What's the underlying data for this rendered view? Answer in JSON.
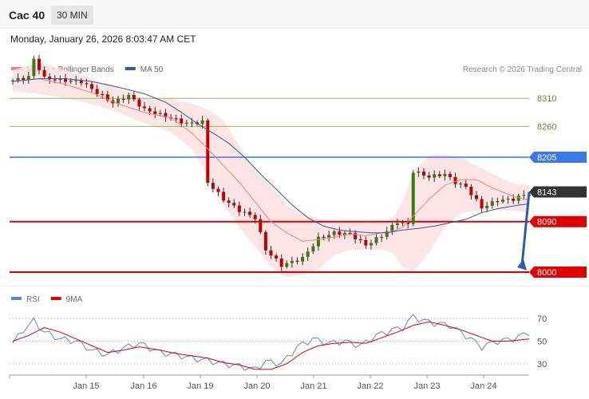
{
  "header": {
    "symbol": "Cac 40",
    "interval": "30 MIN",
    "datetime": "Monday, January 26, 2026 8:03:47 AM CET"
  },
  "colors": {
    "ma20": "#f08080",
    "band": "#fde0e0",
    "ma50": "#335a9a",
    "rsi": "#5b85d9",
    "rsi_ma": "#e00000",
    "candle_up": "#3a7a1a",
    "candle_down": "#c00000",
    "resistance_green": "#8dbf52",
    "pivot_blue": "#3a78e6",
    "support_red": "#e00000",
    "last_price": "#333333",
    "arrow": "#2a5ca8"
  },
  "chart_data": [
    {
      "type": "candlestick",
      "legend": [
        {
          "label": "MA 20 + Bollinger Bands",
          "color": "#f08080"
        },
        {
          "label": "MA 50",
          "color": "#335a9a"
        }
      ],
      "credit": "Research © 2026 Trading Central",
      "ylim": [
        7980,
        8400
      ],
      "levels": [
        {
          "label": "8310",
          "value": 8310,
          "kind": "resistance"
        },
        {
          "label": "8260",
          "value": 8260,
          "kind": "resistance"
        },
        {
          "label": "8205",
          "value": 8205,
          "kind": "pivot"
        },
        {
          "label": "8143",
          "value": 8143,
          "kind": "last"
        },
        {
          "label": "8090",
          "value": 8090,
          "kind": "support"
        },
        {
          "label": "8000",
          "value": 8000,
          "kind": "support"
        }
      ],
      "close_anchors": [
        [
          0,
          8342
        ],
        [
          3,
          8348
        ],
        [
          4,
          8380
        ],
        [
          6,
          8346
        ],
        [
          10,
          8342
        ],
        [
          13,
          8340
        ],
        [
          16,
          8320
        ],
        [
          19,
          8302
        ],
        [
          22,
          8315
        ],
        [
          25,
          8290
        ],
        [
          29,
          8278
        ],
        [
          33,
          8265
        ],
        [
          36,
          8268
        ],
        [
          37,
          8160
        ],
        [
          40,
          8130
        ],
        [
          43,
          8110
        ],
        [
          46,
          8097
        ],
        [
          48,
          8040
        ],
        [
          51,
          8012
        ],
        [
          55,
          8025
        ],
        [
          58,
          8060
        ],
        [
          61,
          8070
        ],
        [
          64,
          8068
        ],
        [
          67,
          8048
        ],
        [
          70,
          8065
        ],
        [
          73,
          8090
        ],
        [
          75,
          8085
        ],
        [
          76,
          8180
        ],
        [
          79,
          8170
        ],
        [
          82,
          8175
        ],
        [
          84,
          8160
        ],
        [
          86,
          8152
        ],
        [
          89,
          8115
        ],
        [
          92,
          8128
        ],
        [
          95,
          8130
        ],
        [
          97,
          8138
        ],
        [
          98,
          8140
        ]
      ],
      "candle_count": 99,
      "ma20_anchors": [
        [
          0,
          8340
        ],
        [
          5,
          8345
        ],
        [
          10,
          8335
        ],
        [
          15,
          8320
        ],
        [
          20,
          8300
        ],
        [
          25,
          8285
        ],
        [
          30,
          8275
        ],
        [
          34,
          8248
        ],
        [
          37,
          8220
        ],
        [
          40,
          8190
        ],
        [
          43,
          8160
        ],
        [
          46,
          8125
        ],
        [
          49,
          8090
        ],
        [
          52,
          8070
        ],
        [
          55,
          8055
        ],
        [
          58,
          8058
        ],
        [
          61,
          8062
        ],
        [
          64,
          8068
        ],
        [
          67,
          8065
        ],
        [
          70,
          8070
        ],
        [
          72,
          8072
        ],
        [
          74,
          8080
        ],
        [
          76,
          8100
        ],
        [
          79,
          8130
        ],
        [
          82,
          8155
        ],
        [
          85,
          8165
        ],
        [
          88,
          8165
        ],
        [
          91,
          8150
        ],
        [
          95,
          8135
        ],
        [
          98,
          8128
        ]
      ],
      "band_upper_anchors": [
        [
          0,
          8360
        ],
        [
          5,
          8375
        ],
        [
          10,
          8360
        ],
        [
          15,
          8345
        ],
        [
          20,
          8330
        ],
        [
          25,
          8310
        ],
        [
          30,
          8310
        ],
        [
          34,
          8300
        ],
        [
          37,
          8290
        ],
        [
          40,
          8270
        ],
        [
          43,
          8225
        ],
        [
          46,
          8180
        ],
        [
          49,
          8155
        ],
        [
          52,
          8120
        ],
        [
          55,
          8105
        ],
        [
          58,
          8095
        ],
        [
          61,
          8090
        ],
        [
          64,
          8092
        ],
        [
          67,
          8088
        ],
        [
          70,
          8090
        ],
        [
          72,
          8095
        ],
        [
          74,
          8125
        ],
        [
          76,
          8180
        ],
        [
          79,
          8208
        ],
        [
          82,
          8210
        ],
        [
          85,
          8205
        ],
        [
          88,
          8190
        ],
        [
          91,
          8175
        ],
        [
          95,
          8158
        ],
        [
          98,
          8155
        ]
      ],
      "band_lower_anchors": [
        [
          0,
          8322
        ],
        [
          5,
          8318
        ],
        [
          10,
          8310
        ],
        [
          15,
          8300
        ],
        [
          20,
          8285
        ],
        [
          25,
          8265
        ],
        [
          30,
          8250
        ],
        [
          34,
          8220
        ],
        [
          37,
          8170
        ],
        [
          40,
          8120
        ],
        [
          43,
          8080
        ],
        [
          46,
          8045
        ],
        [
          49,
          8010
        ],
        [
          52,
          7990
        ],
        [
          55,
          7995
        ],
        [
          58,
          8005
        ],
        [
          61,
          8030
        ],
        [
          64,
          8040
        ],
        [
          67,
          8040
        ],
        [
          70,
          8040
        ],
        [
          72,
          8035
        ],
        [
          74,
          8010
        ],
        [
          76,
          8000
        ],
        [
          79,
          8035
        ],
        [
          82,
          8080
        ],
        [
          85,
          8105
        ],
        [
          88,
          8110
        ],
        [
          91,
          8110
        ],
        [
          95,
          8110
        ],
        [
          98,
          8105
        ]
      ],
      "ma50_anchors": [
        [
          0,
          8340
        ],
        [
          5,
          8345
        ],
        [
          10,
          8345
        ],
        [
          15,
          8340
        ],
        [
          20,
          8330
        ],
        [
          25,
          8318
        ],
        [
          29,
          8303
        ],
        [
          32,
          8285
        ],
        [
          35,
          8265
        ],
        [
          38,
          8248
        ],
        [
          41,
          8230
        ],
        [
          44,
          8205
        ],
        [
          47,
          8175
        ],
        [
          50,
          8148
        ],
        [
          53,
          8120
        ],
        [
          56,
          8097
        ],
        [
          59,
          8082
        ],
        [
          62,
          8075
        ],
        [
          65,
          8072
        ],
        [
          68,
          8070
        ],
        [
          71,
          8070
        ],
        [
          74,
          8075
        ],
        [
          77,
          8078
        ],
        [
          80,
          8082
        ],
        [
          83,
          8088
        ],
        [
          86,
          8094
        ],
        [
          89,
          8106
        ],
        [
          92,
          8113
        ],
        [
          95,
          8118
        ],
        [
          98,
          8122
        ]
      ]
    },
    {
      "type": "line",
      "legend": [
        {
          "label": "RSI",
          "color": "#5b85d9"
        },
        {
          "label": "9MA",
          "color": "#e00000"
        }
      ],
      "ylim": [
        20,
        80
      ],
      "yticks": [
        "70",
        "50",
        "30"
      ],
      "reference_levels": [
        70,
        50,
        30
      ],
      "x_ticks": [
        "Jan 15",
        "Jan 16",
        "Jan 19",
        "Jan 20",
        "Jan 21",
        "Jan 22",
        "Jan 23",
        "Jan 24"
      ],
      "rsi_anchors": [
        [
          0,
          48
        ],
        [
          2,
          60
        ],
        [
          4,
          68
        ],
        [
          6,
          58
        ],
        [
          9,
          52
        ],
        [
          12,
          50
        ],
        [
          15,
          42
        ],
        [
          18,
          38
        ],
        [
          21,
          44
        ],
        [
          24,
          48
        ],
        [
          25,
          46
        ],
        [
          28,
          40
        ],
        [
          31,
          38
        ],
        [
          34,
          35
        ],
        [
          37,
          33
        ],
        [
          40,
          30
        ],
        [
          43,
          28
        ],
        [
          46,
          25
        ],
        [
          48,
          32
        ],
        [
          51,
          30
        ],
        [
          54,
          45
        ],
        [
          57,
          52
        ],
        [
          60,
          48
        ],
        [
          63,
          50
        ],
        [
          66,
          46
        ],
        [
          69,
          55
        ],
        [
          72,
          60
        ],
        [
          74,
          62
        ],
        [
          76,
          72
        ],
        [
          78,
          68
        ],
        [
          80,
          66
        ],
        [
          83,
          64
        ],
        [
          86,
          55
        ],
        [
          89,
          45
        ],
        [
          92,
          50
        ],
        [
          95,
          52
        ],
        [
          97,
          56
        ],
        [
          98,
          58
        ]
      ],
      "rsi_ma_anchors": [
        [
          0,
          50
        ],
        [
          3,
          55
        ],
        [
          6,
          62
        ],
        [
          9,
          58
        ],
        [
          12,
          52
        ],
        [
          15,
          46
        ],
        [
          18,
          40
        ],
        [
          21,
          42
        ],
        [
          24,
          45
        ],
        [
          28,
          42
        ],
        [
          31,
          39
        ],
        [
          34,
          37
        ],
        [
          37,
          35
        ],
        [
          40,
          31
        ],
        [
          43,
          29
        ],
        [
          46,
          25
        ],
        [
          49,
          25
        ],
        [
          52,
          30
        ],
        [
          55,
          40
        ],
        [
          58,
          46
        ],
        [
          61,
          48
        ],
        [
          64,
          49
        ],
        [
          67,
          48
        ],
        [
          70,
          53
        ],
        [
          73,
          58
        ],
        [
          76,
          64
        ],
        [
          79,
          67
        ],
        [
          82,
          64
        ],
        [
          85,
          60
        ],
        [
          88,
          55
        ],
        [
          91,
          50
        ],
        [
          94,
          50
        ],
        [
          98,
          52
        ]
      ]
    }
  ]
}
